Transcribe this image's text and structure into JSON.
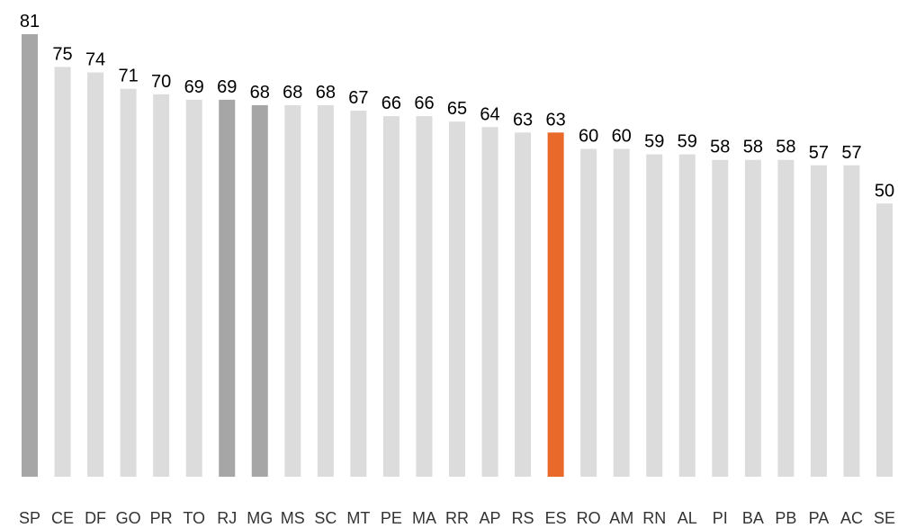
{
  "chart_data": {
    "type": "bar",
    "categories": [
      "SP",
      "CE",
      "DF",
      "GO",
      "PR",
      "TO",
      "RJ",
      "MG",
      "MS",
      "SC",
      "MT",
      "PE",
      "MA",
      "RR",
      "AP",
      "RS",
      "ES",
      "RO",
      "AM",
      "RN",
      "AL",
      "PI",
      "BA",
      "PB",
      "PA",
      "AC",
      "SE"
    ],
    "values": [
      81,
      75,
      74,
      71,
      70,
      69,
      69,
      68,
      68,
      68,
      67,
      66,
      66,
      65,
      64,
      63,
      63,
      60,
      60,
      59,
      59,
      58,
      58,
      58,
      57,
      57,
      50
    ],
    "colors": [
      "#a6a6a6",
      "#dcdcdc",
      "#dcdcdc",
      "#dcdcdc",
      "#dcdcdc",
      "#dcdcdc",
      "#a6a6a6",
      "#a6a6a6",
      "#dcdcdc",
      "#dcdcdc",
      "#dcdcdc",
      "#dcdcdc",
      "#dcdcdc",
      "#dcdcdc",
      "#dcdcdc",
      "#dcdcdc",
      "#e8692a",
      "#dcdcdc",
      "#dcdcdc",
      "#dcdcdc",
      "#dcdcdc",
      "#dcdcdc",
      "#dcdcdc",
      "#dcdcdc",
      "#dcdcdc",
      "#dcdcdc",
      "#dcdcdc"
    ]
  }
}
